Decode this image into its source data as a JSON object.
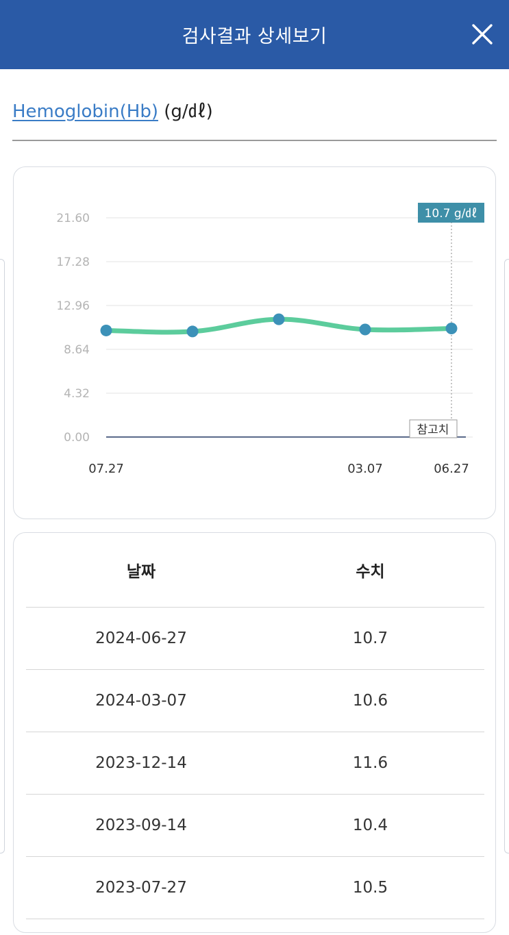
{
  "header": {
    "title": "검사결과 상세보기",
    "close_icon": "close-icon"
  },
  "test": {
    "name": "Hemoglobin(Hb)",
    "unit": "(g/㎗)"
  },
  "chart": {
    "tooltip": "10.7 g/㎗",
    "reference_label": "참고치"
  },
  "chart_data": {
    "type": "line",
    "x": [
      "2023-07-27",
      "2023-09-14",
      "2023-12-14",
      "2024-03-07",
      "2024-06-27"
    ],
    "values": [
      10.5,
      10.4,
      11.6,
      10.6,
      10.7
    ],
    "x_tick_labels": [
      "07.27",
      "",
      "",
      "03.07",
      "06.27"
    ],
    "y_ticks": [
      "0.00",
      "4.32",
      "8.64",
      "12.96",
      "17.28",
      "21.60"
    ],
    "ylim": [
      0,
      21.6
    ],
    "grid": true,
    "line_color": "#5ccc9c",
    "point_color": "#3c91b8",
    "reference_line": 0
  },
  "table": {
    "headers": [
      "날짜",
      "수치"
    ],
    "rows": [
      [
        "2024-06-27",
        "10.7"
      ],
      [
        "2024-03-07",
        "10.6"
      ],
      [
        "2023-12-14",
        "11.6"
      ],
      [
        "2023-09-14",
        "10.4"
      ],
      [
        "2023-07-27",
        "10.5"
      ]
    ]
  }
}
